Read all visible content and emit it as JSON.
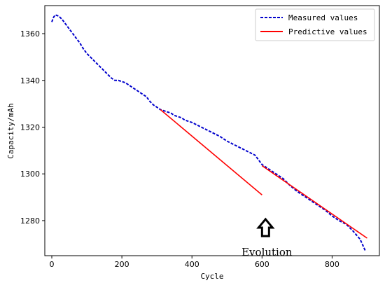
{
  "chart_data": {
    "type": "line",
    "xlabel": "Cycle",
    "ylabel": "Capacity/mAh",
    "xlim": [
      -20,
      935
    ],
    "ylim": [
      1265,
      1372
    ],
    "xticks": [
      0,
      200,
      400,
      600,
      800
    ],
    "yticks": [
      1280,
      1300,
      1320,
      1340,
      1360
    ],
    "grid": false,
    "legend_position": "top-right",
    "series": [
      {
        "name": "Measured values",
        "style": "dashed",
        "color": "#0000cc",
        "x": [
          0,
          5,
          10,
          20,
          30,
          40,
          50,
          60,
          70,
          80,
          90,
          100,
          110,
          120,
          130,
          140,
          150,
          160,
          170,
          180,
          190,
          200,
          210,
          220,
          230,
          240,
          250,
          260,
          270,
          280,
          290,
          300,
          310,
          320,
          330,
          340,
          350,
          360,
          370,
          380,
          390,
          400,
          420,
          440,
          460,
          480,
          500,
          520,
          540,
          560,
          580,
          600,
          620,
          640,
          660,
          680,
          700,
          720,
          740,
          760,
          780,
          800,
          820,
          840,
          860,
          880,
          895
        ],
        "y": [
          1365,
          1367,
          1368,
          1367.5,
          1366,
          1364,
          1362,
          1360,
          1358,
          1356,
          1353.5,
          1351.5,
          1350,
          1348.5,
          1347,
          1345.5,
          1344,
          1342.5,
          1341,
          1340,
          1340,
          1339.5,
          1339,
          1338,
          1337,
          1336,
          1335,
          1334,
          1333,
          1331,
          1329.5,
          1328.5,
          1327.5,
          1327,
          1326.5,
          1326,
          1325,
          1324.5,
          1324,
          1323,
          1322.5,
          1322,
          1320.5,
          1319,
          1317.5,
          1316,
          1314,
          1312.5,
          1311,
          1309.5,
          1308,
          1304,
          1302,
          1300,
          1298,
          1295,
          1292.5,
          1290.5,
          1288.5,
          1286.5,
          1284.5,
          1282,
          1280,
          1278.5,
          1275.5,
          1272,
          1267
        ]
      },
      {
        "name": "Predictive values",
        "style": "solid",
        "color": "#ff0000",
        "segments": [
          {
            "x": [
              310,
              600
            ],
            "y": [
              1327.5,
              1291
            ]
          },
          {
            "x": [
              600,
              900
            ],
            "y": [
              1303.5,
              1272.5
            ]
          }
        ]
      }
    ],
    "annotations": [
      {
        "text": "Evolution",
        "x": 610,
        "y": 1277
      }
    ]
  }
}
